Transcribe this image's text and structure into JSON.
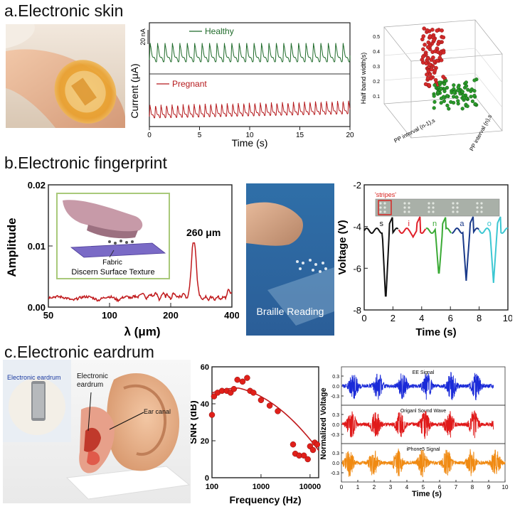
{
  "sections": {
    "a": "a.Electronic skin",
    "b": "b.Electronic fingerprint",
    "c": "c.Electronic eardrum"
  },
  "photos": {
    "braille_label": "Braille Reading",
    "inset_fabric": "Fabric",
    "inset_caption": "Discern Surface Texture",
    "eardrum_inset": "Electronic eardrum",
    "eardrum_label": "Electronic eardrum",
    "ear_canal": "Ear canal"
  },
  "chart_data": [
    {
      "id": "pulse",
      "type": "line",
      "xlabel": "Time (s)",
      "ylabel": "Current (μA)",
      "scale_bar": "20 nA",
      "xlim": [
        0,
        20
      ],
      "xticks": [
        "0",
        "5",
        "10",
        "15",
        "20"
      ],
      "series": [
        {
          "name": "Healthy",
          "color": "#1f6b2a",
          "period_s": 0.74
        },
        {
          "name": "Pregnant",
          "color": "#b5191c",
          "period_s": 0.55
        }
      ]
    },
    {
      "id": "scatter3d",
      "type": "scatter",
      "zlabel": "Half band width(s)",
      "xlabel": "PP interval (n-1),s",
      "ylabel": "PP interval (n),s",
      "zticks": [
        "0.1",
        "0.2",
        "0.3",
        "0.4",
        "0.5"
      ],
      "series": [
        {
          "name": "Healthy",
          "color": "#d42a2a"
        },
        {
          "name": "Pregnant",
          "color": "#2a9a2a"
        }
      ]
    },
    {
      "id": "fingerprint",
      "type": "line",
      "xlabel": "λ (μm)",
      "ylabel": "Amplitude",
      "xscale": "log",
      "xlim": [
        50,
        400
      ],
      "ylim": [
        0,
        0.02
      ],
      "xticks": [
        "50",
        "100",
        "200",
        "400"
      ],
      "yticks": [
        "0.00",
        "0.01",
        "0.02"
      ],
      "annotation": "260 μm",
      "color": "#c0191c",
      "peak": {
        "x": 260,
        "y": 0.0103
      }
    },
    {
      "id": "braille",
      "type": "line",
      "xlabel": "Time (s)",
      "ylabel": "Voltage (V)",
      "xlim": [
        0,
        10
      ],
      "ylim": [
        -8,
        -2
      ],
      "xticks": [
        "0",
        "2",
        "4",
        "6",
        "8",
        "10"
      ],
      "yticks": [
        "-2",
        "-4",
        "-6",
        "-8"
      ],
      "banner": "'stripes'",
      "letters": [
        {
          "char": "s",
          "t": 1.5,
          "color": "#111111",
          "min": -7.6
        },
        {
          "char": "i",
          "t": 3.4,
          "color": "#e0202a",
          "min": -4.5
        },
        {
          "char": "n",
          "t": 5.2,
          "color": "#3aaa35",
          "min": -6.4
        },
        {
          "char": "a",
          "t": 7.1,
          "color": "#1a3a8a",
          "min": -6.6
        },
        {
          "char": "o",
          "t": 9.0,
          "color": "#3cc7d2",
          "min": -6.7
        }
      ]
    },
    {
      "id": "snr",
      "type": "scatter",
      "xlabel": "Frequency (Hz)",
      "ylabel": "SNR (dB)",
      "xscale": "log",
      "xlim": [
        100,
        15000
      ],
      "ylim": [
        0,
        60
      ],
      "xticks": [
        "100",
        "1000",
        "10000"
      ],
      "yticks": [
        "0",
        "20",
        "40",
        "60"
      ],
      "color": "#e0201a",
      "points": [
        [
          100,
          34
        ],
        [
          110,
          44
        ],
        [
          130,
          46
        ],
        [
          160,
          47
        ],
        [
          200,
          47
        ],
        [
          240,
          46
        ],
        [
          280,
          48
        ],
        [
          330,
          53
        ],
        [
          420,
          52
        ],
        [
          520,
          54
        ],
        [
          600,
          47
        ],
        [
          700,
          46
        ],
        [
          1000,
          42
        ],
        [
          1500,
          39
        ],
        [
          2200,
          36
        ],
        [
          4500,
          18
        ],
        [
          5000,
          13
        ],
        [
          6000,
          12
        ],
        [
          7500,
          12
        ],
        [
          9000,
          10
        ],
        [
          10000,
          17
        ],
        [
          11500,
          15
        ],
        [
          12500,
          19
        ],
        [
          14000,
          18
        ]
      ]
    },
    {
      "id": "waves",
      "type": "line",
      "xlabel": "Time (s)",
      "ylabel": "Normalized Voltage",
      "xlim": [
        0,
        10
      ],
      "xticks": [
        "0",
        "1",
        "2",
        "3",
        "4",
        "5",
        "6",
        "7",
        "8",
        "9",
        "10"
      ],
      "yticks": [
        "0.3",
        "0.0",
        "-0.3"
      ],
      "series": [
        {
          "name": "EE Signal",
          "color": "#1a2ad8",
          "end": 9.3
        },
        {
          "name": "Origanl Sound Wave",
          "color": "#e01a1a",
          "end": 9.3
        },
        {
          "name": "iPhone5 Signal",
          "color": "#f08a12",
          "end": 10
        }
      ]
    }
  ]
}
